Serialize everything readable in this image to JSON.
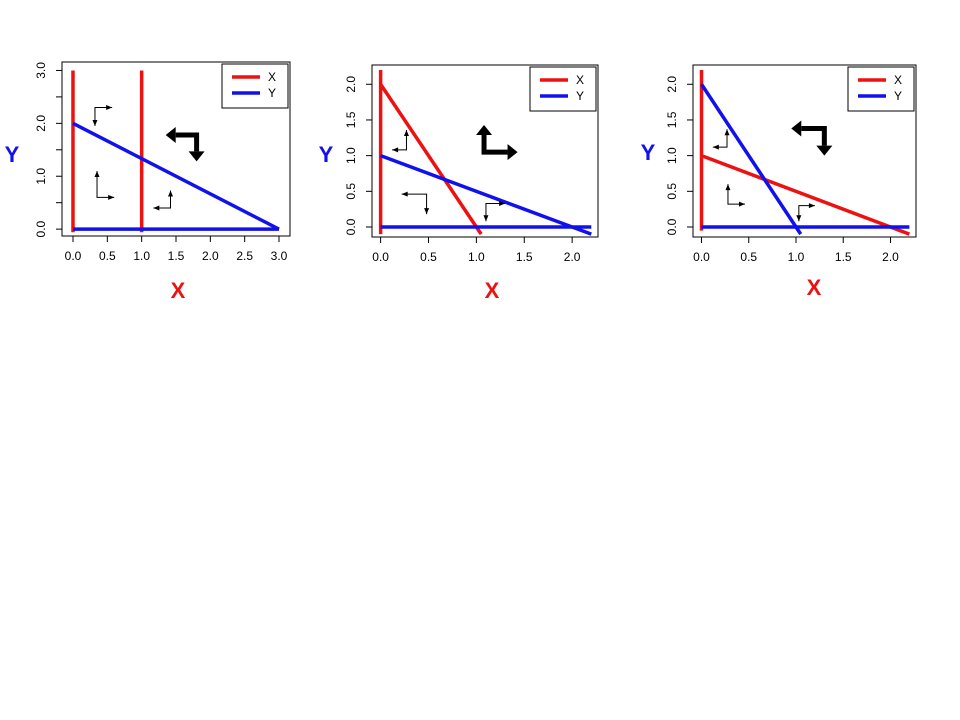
{
  "chart_data": [
    {
      "type": "line",
      "xlabel": "X",
      "ylabel": "Y",
      "xlim": [
        0,
        3
      ],
      "ylim": [
        0,
        3
      ],
      "xticks": [
        "0.0",
        "0.5",
        "1.0",
        "1.5",
        "2.0",
        "2.5",
        "3.0"
      ],
      "yticks": [
        "0.0",
        "1.0",
        "2.0",
        "3.0"
      ],
      "legend": {
        "position": "top-right",
        "entries": [
          {
            "label": "X",
            "color": "#ee1111"
          },
          {
            "label": "Y",
            "color": "#1111ee"
          }
        ]
      },
      "series": [
        {
          "name": "X",
          "color": "#ee1111",
          "segments": [
            [
              [
                0,
                -0.06
              ],
              [
                0,
                3.0
              ]
            ],
            [
              [
                1,
                -0.06
              ],
              [
                1,
                3.0
              ]
            ]
          ]
        },
        {
          "name": "Y",
          "color": "#1111ee",
          "segments": [
            [
              [
                0,
                0
              ],
              [
                3,
                0
              ]
            ],
            [
              [
                0,
                2
              ],
              [
                3,
                0
              ]
            ]
          ]
        }
      ],
      "thin_arrows": [
        {
          "corner": [
            0.35,
            0.6
          ],
          "h": 0.25,
          "v": 0.5,
          "hdir": 1,
          "vdir": 1
        },
        {
          "corner": [
            0.32,
            2.3
          ],
          "h": 0.25,
          "v": 0.35,
          "hdir": 1,
          "vdir": -1
        },
        {
          "corner": [
            1.42,
            0.4
          ],
          "h": 0.25,
          "v": 0.33,
          "hdir": -1,
          "vdir": 1
        }
      ],
      "big_arrow": {
        "corner": [
          1.8,
          1.78
        ],
        "h": 0.45,
        "v": 0.5,
        "hdir": -1,
        "vdir": -1
      }
    },
    {
      "type": "line",
      "xlabel": "X",
      "ylabel": "Y",
      "xlim": [
        0,
        2.2
      ],
      "ylim": [
        0,
        2.2
      ],
      "xticks": [
        "0.0",
        "0.5",
        "1.0",
        "1.5",
        "2.0"
      ],
      "yticks": [
        "0.0",
        "0.5",
        "1.0",
        "1.5",
        "2.0"
      ],
      "legend": {
        "position": "top-right",
        "entries": [
          {
            "label": "X",
            "color": "#ee1111"
          },
          {
            "label": "Y",
            "color": "#1111ee"
          }
        ]
      },
      "series": [
        {
          "name": "X",
          "color": "#ee1111",
          "segments": [
            [
              [
                0,
                -0.1
              ],
              [
                0,
                2.2
              ]
            ],
            [
              [
                0,
                2
              ],
              [
                1.05,
                -0.1
              ]
            ]
          ]
        },
        {
          "name": "Y",
          "color": "#1111ee",
          "segments": [
            [
              [
                0,
                0
              ],
              [
                2.2,
                0
              ]
            ],
            [
              [
                0,
                1
              ],
              [
                2.2,
                -0.1
              ]
            ]
          ]
        }
      ],
      "thin_arrows": [
        {
          "corner": [
            0.27,
            1.08
          ],
          "h": 0.15,
          "v": 0.28,
          "hdir": -1,
          "vdir": 1
        },
        {
          "corner": [
            0.48,
            0.46
          ],
          "h": 0.26,
          "v": 0.28,
          "hdir": -1,
          "vdir": -1
        },
        {
          "corner": [
            1.1,
            0.33
          ],
          "h": 0.2,
          "v": 0.25,
          "hdir": 1,
          "vdir": -1
        }
      ],
      "big_arrow": {
        "corner": [
          1.08,
          1.05
        ],
        "h": 0.35,
        "v": 0.38,
        "hdir": 1,
        "vdir": 1
      }
    },
    {
      "type": "line",
      "xlabel": "X",
      "ylabel": "Y",
      "xlim": [
        0,
        2.2
      ],
      "ylim": [
        0,
        2.2
      ],
      "xticks": [
        "0.0",
        "0.5",
        "1.0",
        "1.5",
        "2.0"
      ],
      "yticks": [
        "0.0",
        "0.5",
        "1.0",
        "1.5",
        "2.0"
      ],
      "legend": {
        "position": "top-right",
        "entries": [
          {
            "label": "X",
            "color": "#ee1111"
          },
          {
            "label": "Y",
            "color": "#1111ee"
          }
        ]
      },
      "series": [
        {
          "name": "X",
          "color": "#ee1111",
          "segments": [
            [
              [
                0,
                -0.05
              ],
              [
                0,
                2.2
              ]
            ],
            [
              [
                0,
                1
              ],
              [
                2.2,
                -0.1
              ]
            ]
          ]
        },
        {
          "name": "Y",
          "color": "#1111ee",
          "segments": [
            [
              [
                0,
                0
              ],
              [
                2.2,
                0
              ]
            ],
            [
              [
                0,
                2
              ],
              [
                1.05,
                -0.1
              ]
            ]
          ]
        }
      ],
      "thin_arrows": [
        {
          "corner": [
            0.27,
            1.12
          ],
          "h": 0.15,
          "v": 0.25,
          "hdir": -1,
          "vdir": 1
        },
        {
          "corner": [
            0.28,
            0.32
          ],
          "h": 0.18,
          "v": 0.28,
          "hdir": 1,
          "vdir": 1
        },
        {
          "corner": [
            1.03,
            0.3
          ],
          "h": 0.17,
          "v": 0.22,
          "hdir": 1,
          "vdir": -1
        }
      ],
      "big_arrow": {
        "corner": [
          1.3,
          1.38
        ],
        "h": 0.35,
        "v": 0.38,
        "hdir": -1,
        "vdir": -1
      }
    }
  ]
}
